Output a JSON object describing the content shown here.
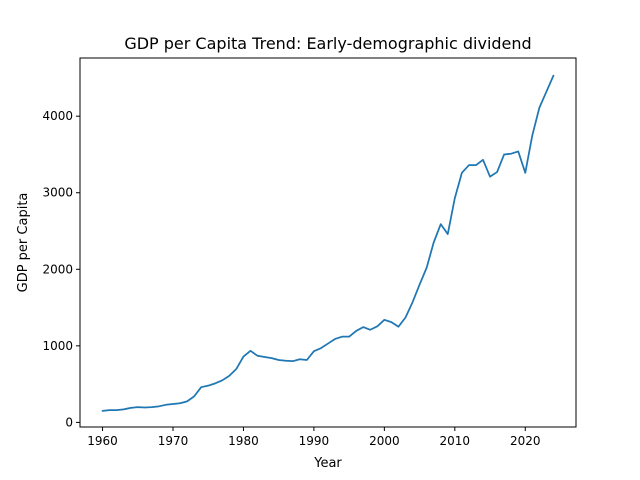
{
  "chart_data": {
    "type": "line",
    "title": "GDP per Capita Trend: Early-demographic dividend",
    "xlabel": "Year",
    "ylabel": "GDP per Capita",
    "xlim": [
      1956.8,
      2027.2
    ],
    "ylim": [
      -60,
      4760
    ],
    "xticks": [
      1960,
      1970,
      1980,
      1990,
      2000,
      2010,
      2020
    ],
    "yticks": [
      0,
      1000,
      2000,
      3000,
      4000
    ],
    "grid": false,
    "legend": "none",
    "line_color": "#1f77b4",
    "series": [
      {
        "x": [
          1960,
          1961,
          1962,
          1963,
          1964,
          1965,
          1966,
          1967,
          1968,
          1969,
          1970,
          1971,
          1972,
          1973,
          1974,
          1975,
          1976,
          1977,
          1978,
          1979,
          1980,
          1981,
          1982,
          1983,
          1984,
          1985,
          1986,
          1987,
          1988,
          1989,
          1990,
          1991,
          1992,
          1993,
          1994,
          1995,
          1996,
          1997,
          1998,
          1999,
          2000,
          2001,
          2002,
          2003,
          2004,
          2005,
          2006,
          2007,
          2008,
          2009,
          2010,
          2011,
          2012,
          2013,
          2014,
          2015,
          2016,
          2017,
          2018,
          2019,
          2020,
          2021,
          2022,
          2023,
          2024
        ],
        "values": [
          150,
          160,
          160,
          170,
          190,
          200,
          195,
          200,
          210,
          230,
          240,
          250,
          275,
          340,
          460,
          480,
          510,
          550,
          610,
          700,
          860,
          935,
          870,
          855,
          840,
          815,
          805,
          800,
          825,
          815,
          930,
          970,
          1030,
          1090,
          1120,
          1120,
          1195,
          1245,
          1210,
          1255,
          1340,
          1310,
          1250,
          1370,
          1570,
          1800,
          2020,
          2350,
          2590,
          2460,
          2930,
          3260,
          3360,
          3360,
          3430,
          3210,
          3270,
          3500,
          3510,
          3540,
          3260,
          3750,
          4110,
          4320,
          4530
        ]
      }
    ]
  }
}
